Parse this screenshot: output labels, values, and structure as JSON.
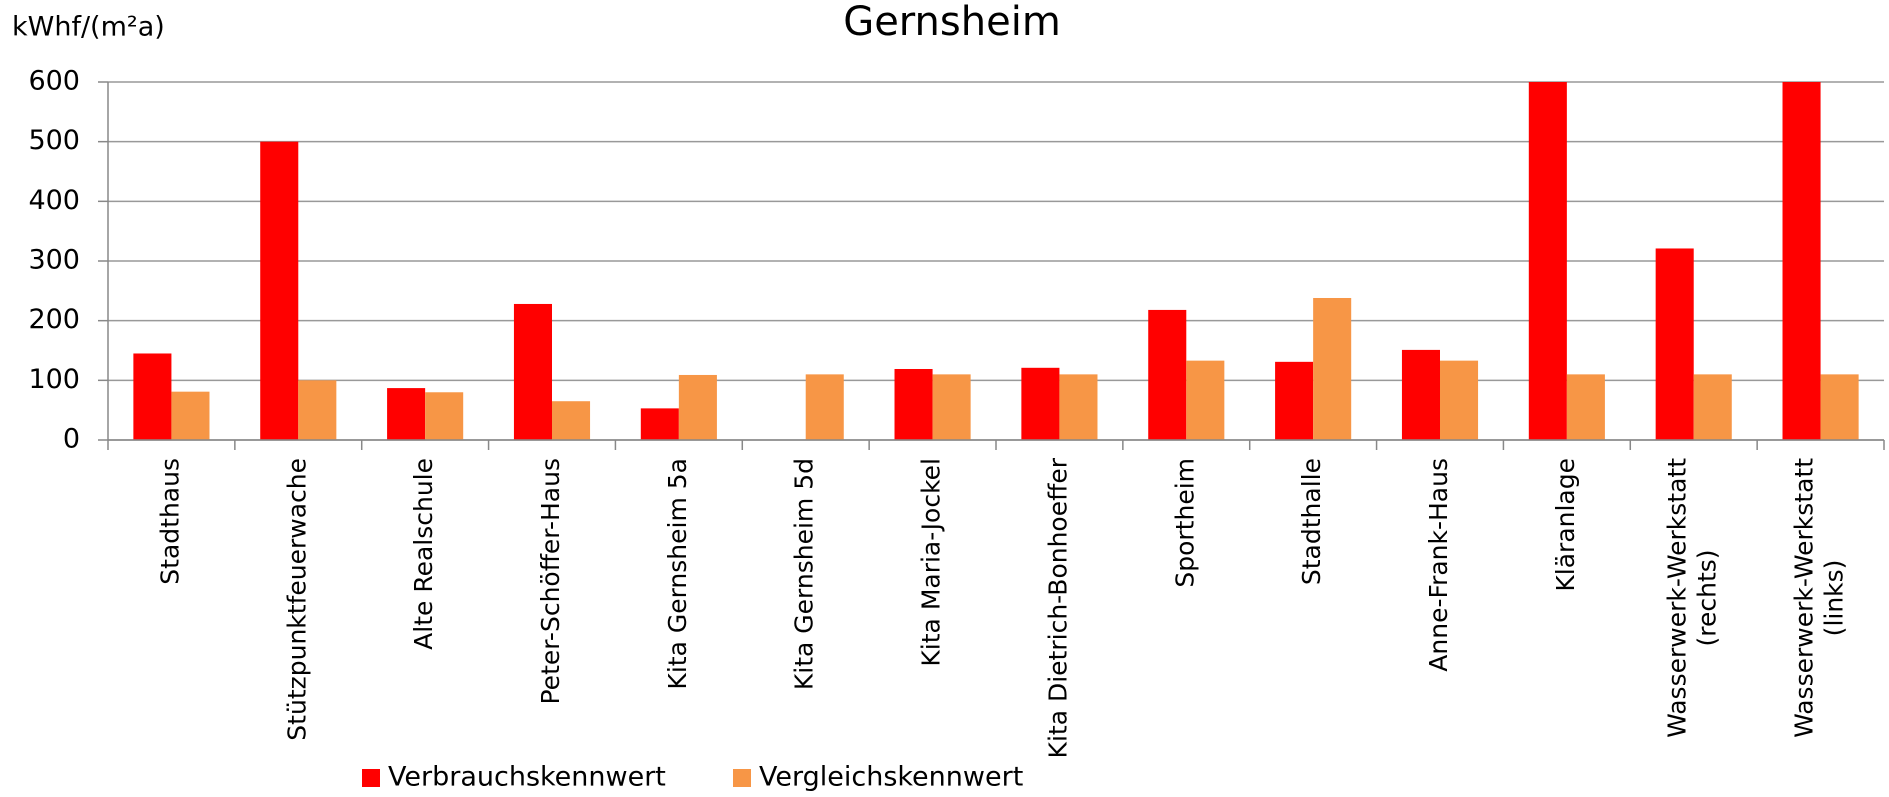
{
  "chart_data": {
    "type": "bar",
    "title": "Gernsheim",
    "y_label": "kWhf/(m²a)",
    "categories": [
      "Stadthaus",
      "Stützpunktfeuerwache",
      "Alte Realschule",
      "Peter-Schöffer-Haus",
      "Kita Gernsheim 5a",
      "Kita Gernsheim 5d",
      "Kita Maria-Jockel",
      "Kita Dietrich-Bonhoeffer",
      "Sportheim",
      "Stadthalle",
      "Anne-Frank-Haus",
      "Kläranlage",
      "Wasserwerk-Werkstatt\n(rechts)",
      "Wasserwerk-Werkstatt\n(links)"
    ],
    "series": [
      {
        "name": "Verbrauchskennwert",
        "color": "#ff0000",
        "values": [
          145,
          500,
          87,
          228,
          53,
          null,
          119,
          121,
          218,
          131,
          151,
          600,
          321,
          600
        ]
      },
      {
        "name": "Vergleichskennwert",
        "color": "#f79646",
        "values": [
          81,
          100,
          80,
          65,
          109,
          110,
          110,
          110,
          133,
          238,
          133,
          110,
          110,
          110
        ]
      }
    ],
    "ylim": [
      0,
      600
    ],
    "yticks": [
      0,
      100,
      200,
      300,
      400,
      500,
      600
    ],
    "grid": true
  }
}
